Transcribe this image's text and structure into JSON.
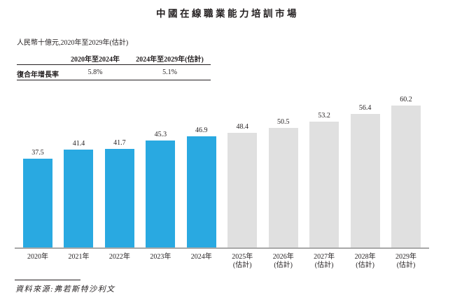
{
  "page": {
    "title": "中國在線職業能力培訓市場",
    "subtitle": "人民幣十億元,2020年至2029年(估計)",
    "source": "資料來源:弗若斯特沙利文"
  },
  "cagr_table": {
    "row_label": "復合年增長率",
    "col_headers": [
      "2020年至2024年",
      "2024年至2029年(估計)"
    ],
    "values": [
      "5.8%",
      "5.1%"
    ]
  },
  "chart_data": {
    "type": "bar",
    "title": "中國在線職業能力培訓市場",
    "unit_label": "人民幣十億元",
    "categories": [
      "2020年",
      "2021年",
      "2022年",
      "2023年",
      "2024年",
      "2025年\n(估計)",
      "2026年\n(估計)",
      "2027年\n(估計)",
      "2028年\n(估計)",
      "2029年\n(估計)"
    ],
    "values": [
      37.5,
      41.4,
      41.7,
      45.3,
      46.9,
      48.4,
      50.5,
      53.2,
      56.4,
      60.2
    ],
    "actual_count": 5,
    "value_labels_shown": true,
    "ylim": [
      0,
      62
    ],
    "grid": false,
    "legend": "none",
    "colors": {
      "actual_bar": "#29A9E1",
      "estimate_bar": "#E0E0E0",
      "axis_line": "#A8A8A8",
      "text": "#231F20"
    }
  }
}
